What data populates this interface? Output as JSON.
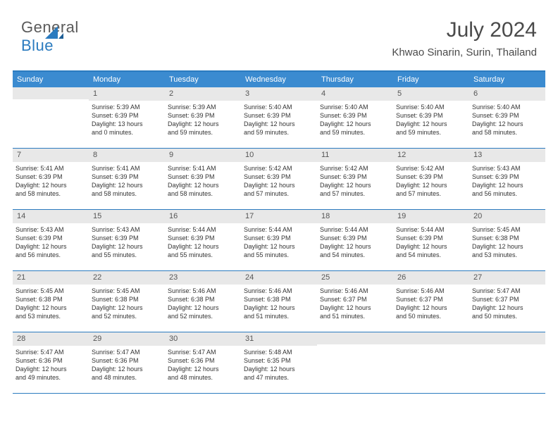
{
  "logo": {
    "text1": "General",
    "text2": "Blue"
  },
  "header": {
    "title": "July 2024",
    "subtitle": "Khwao Sinarin, Surin, Thailand"
  },
  "colors": {
    "header_bg": "#3b8bd0",
    "border": "#2b7bbf",
    "band_bg": "#e8e8e8",
    "text": "#333333"
  },
  "daynames": [
    "Sunday",
    "Monday",
    "Tuesday",
    "Wednesday",
    "Thursday",
    "Friday",
    "Saturday"
  ],
  "labels": {
    "sunrise_prefix": "Sunrise: ",
    "sunset_prefix": "Sunset: ",
    "daylight_prefix": "Daylight: ",
    "and_prefix": "and "
  },
  "weeks": [
    [
      {
        "blank": true
      },
      {
        "num": "1",
        "sunrise": "5:39 AM",
        "sunset": "6:39 PM",
        "d_hours": "13 hours",
        "d_mins": "0 minutes."
      },
      {
        "num": "2",
        "sunrise": "5:39 AM",
        "sunset": "6:39 PM",
        "d_hours": "12 hours",
        "d_mins": "59 minutes."
      },
      {
        "num": "3",
        "sunrise": "5:40 AM",
        "sunset": "6:39 PM",
        "d_hours": "12 hours",
        "d_mins": "59 minutes."
      },
      {
        "num": "4",
        "sunrise": "5:40 AM",
        "sunset": "6:39 PM",
        "d_hours": "12 hours",
        "d_mins": "59 minutes."
      },
      {
        "num": "5",
        "sunrise": "5:40 AM",
        "sunset": "6:39 PM",
        "d_hours": "12 hours",
        "d_mins": "59 minutes."
      },
      {
        "num": "6",
        "sunrise": "5:40 AM",
        "sunset": "6:39 PM",
        "d_hours": "12 hours",
        "d_mins": "58 minutes."
      }
    ],
    [
      {
        "num": "7",
        "sunrise": "5:41 AM",
        "sunset": "6:39 PM",
        "d_hours": "12 hours",
        "d_mins": "58 minutes."
      },
      {
        "num": "8",
        "sunrise": "5:41 AM",
        "sunset": "6:39 PM",
        "d_hours": "12 hours",
        "d_mins": "58 minutes."
      },
      {
        "num": "9",
        "sunrise": "5:41 AM",
        "sunset": "6:39 PM",
        "d_hours": "12 hours",
        "d_mins": "58 minutes."
      },
      {
        "num": "10",
        "sunrise": "5:42 AM",
        "sunset": "6:39 PM",
        "d_hours": "12 hours",
        "d_mins": "57 minutes."
      },
      {
        "num": "11",
        "sunrise": "5:42 AM",
        "sunset": "6:39 PM",
        "d_hours": "12 hours",
        "d_mins": "57 minutes."
      },
      {
        "num": "12",
        "sunrise": "5:42 AM",
        "sunset": "6:39 PM",
        "d_hours": "12 hours",
        "d_mins": "57 minutes."
      },
      {
        "num": "13",
        "sunrise": "5:43 AM",
        "sunset": "6:39 PM",
        "d_hours": "12 hours",
        "d_mins": "56 minutes."
      }
    ],
    [
      {
        "num": "14",
        "sunrise": "5:43 AM",
        "sunset": "6:39 PM",
        "d_hours": "12 hours",
        "d_mins": "56 minutes."
      },
      {
        "num": "15",
        "sunrise": "5:43 AM",
        "sunset": "6:39 PM",
        "d_hours": "12 hours",
        "d_mins": "55 minutes."
      },
      {
        "num": "16",
        "sunrise": "5:44 AM",
        "sunset": "6:39 PM",
        "d_hours": "12 hours",
        "d_mins": "55 minutes."
      },
      {
        "num": "17",
        "sunrise": "5:44 AM",
        "sunset": "6:39 PM",
        "d_hours": "12 hours",
        "d_mins": "55 minutes."
      },
      {
        "num": "18",
        "sunrise": "5:44 AM",
        "sunset": "6:39 PM",
        "d_hours": "12 hours",
        "d_mins": "54 minutes."
      },
      {
        "num": "19",
        "sunrise": "5:44 AM",
        "sunset": "6:39 PM",
        "d_hours": "12 hours",
        "d_mins": "54 minutes."
      },
      {
        "num": "20",
        "sunrise": "5:45 AM",
        "sunset": "6:38 PM",
        "d_hours": "12 hours",
        "d_mins": "53 minutes."
      }
    ],
    [
      {
        "num": "21",
        "sunrise": "5:45 AM",
        "sunset": "6:38 PM",
        "d_hours": "12 hours",
        "d_mins": "53 minutes."
      },
      {
        "num": "22",
        "sunrise": "5:45 AM",
        "sunset": "6:38 PM",
        "d_hours": "12 hours",
        "d_mins": "52 minutes."
      },
      {
        "num": "23",
        "sunrise": "5:46 AM",
        "sunset": "6:38 PM",
        "d_hours": "12 hours",
        "d_mins": "52 minutes."
      },
      {
        "num": "24",
        "sunrise": "5:46 AM",
        "sunset": "6:38 PM",
        "d_hours": "12 hours",
        "d_mins": "51 minutes."
      },
      {
        "num": "25",
        "sunrise": "5:46 AM",
        "sunset": "6:37 PM",
        "d_hours": "12 hours",
        "d_mins": "51 minutes."
      },
      {
        "num": "26",
        "sunrise": "5:46 AM",
        "sunset": "6:37 PM",
        "d_hours": "12 hours",
        "d_mins": "50 minutes."
      },
      {
        "num": "27",
        "sunrise": "5:47 AM",
        "sunset": "6:37 PM",
        "d_hours": "12 hours",
        "d_mins": "50 minutes."
      }
    ],
    [
      {
        "num": "28",
        "sunrise": "5:47 AM",
        "sunset": "6:36 PM",
        "d_hours": "12 hours",
        "d_mins": "49 minutes."
      },
      {
        "num": "29",
        "sunrise": "5:47 AM",
        "sunset": "6:36 PM",
        "d_hours": "12 hours",
        "d_mins": "48 minutes."
      },
      {
        "num": "30",
        "sunrise": "5:47 AM",
        "sunset": "6:36 PM",
        "d_hours": "12 hours",
        "d_mins": "48 minutes."
      },
      {
        "num": "31",
        "sunrise": "5:48 AM",
        "sunset": "6:35 PM",
        "d_hours": "12 hours",
        "d_mins": "47 minutes."
      },
      {
        "blank": true
      },
      {
        "blank": true
      },
      {
        "blank": true
      }
    ]
  ]
}
